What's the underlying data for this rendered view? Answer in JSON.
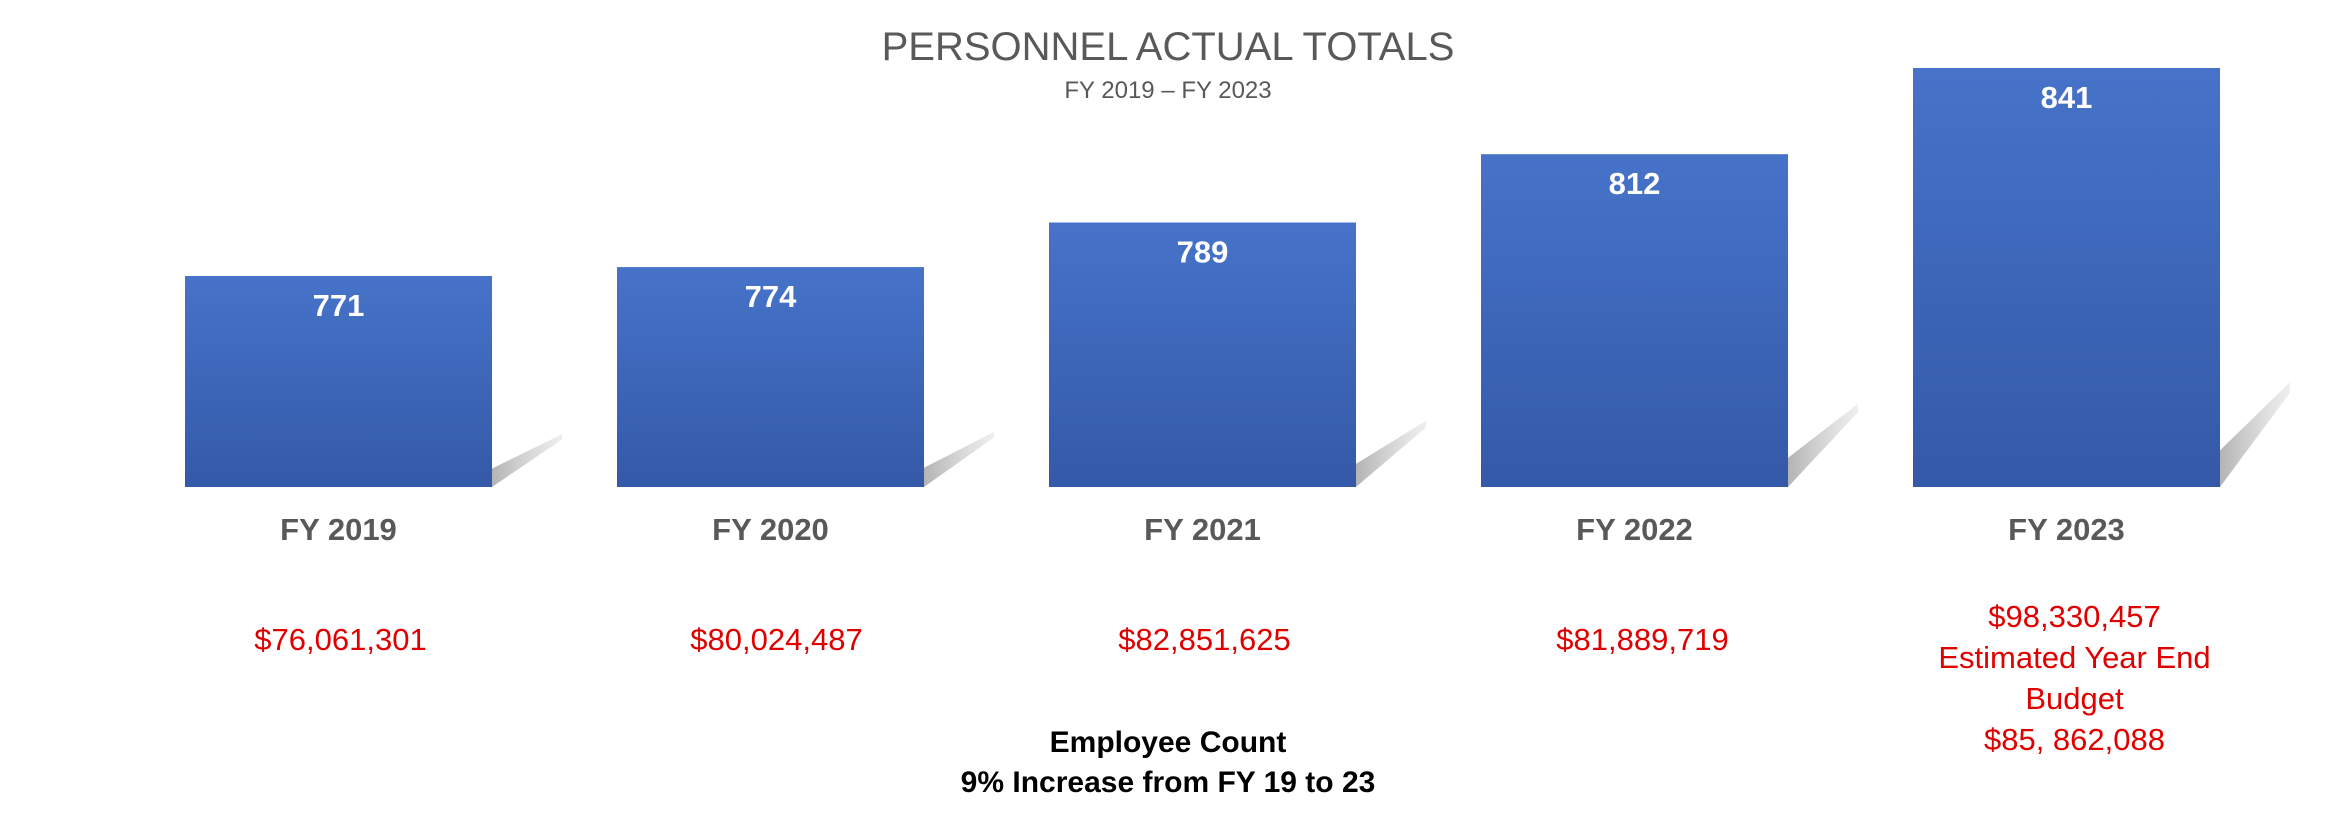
{
  "chart_data": {
    "type": "bar",
    "title": "PERSONNEL ACTUAL TOTALS",
    "subtitle": "FY 2019 – FY 2023",
    "categories": [
      "FY 2019",
      "FY 2020",
      "FY 2021",
      "FY 2022",
      "FY 2023"
    ],
    "values": [
      771,
      774,
      789,
      812,
      841
    ],
    "ylim": [
      700,
      850
    ],
    "grid": false,
    "legend": "none",
    "bar_color": "#4472c4",
    "data_labels": [
      "771",
      "774",
      "789",
      "812",
      "841"
    ],
    "annotations": [
      [
        "$76,061,301"
      ],
      [
        "$80,024,487"
      ],
      [
        "$82,851,625"
      ],
      [
        "$81,889,719"
      ],
      [
        "$98,330,457",
        "Estimated Year End",
        "Budget",
        "$85, 862,088"
      ]
    ],
    "annotation_color": "#e00000",
    "footer": [
      "Employee Count",
      "9% Increase from FY 19 to 23"
    ]
  }
}
